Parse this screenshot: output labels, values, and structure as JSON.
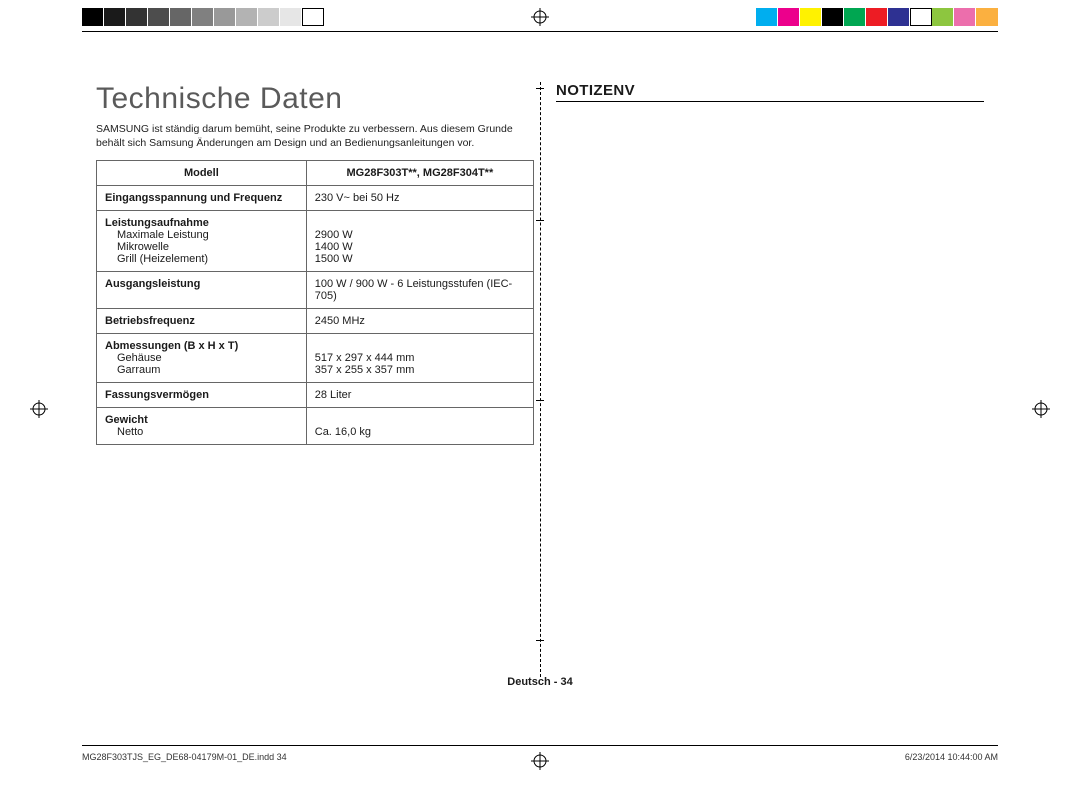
{
  "print_marks": {
    "gray_swatches": [
      "#000000",
      "#1a1a1a",
      "#333333",
      "#4d4d4d",
      "#666666",
      "#808080",
      "#999999",
      "#b3b3b3",
      "#cccccc",
      "#e6e6e6",
      "#ffffff"
    ],
    "color_swatches": [
      "#00aeef",
      "#ec008c",
      "#fff200",
      "#000000",
      "#00a651",
      "#ed1c24",
      "#2e3192",
      "#ffffff",
      "#8dc63f",
      "#ec6eac",
      "#fbb040"
    ]
  },
  "left": {
    "title": "Technische Daten",
    "subtitle": "SAMSUNG ist ständig darum bemüht, seine Produkte zu verbessern. Aus diesem Grunde behält sich Samsung Änderungen am Design und an Bedienungsanleitungen vor.",
    "table": {
      "header_left": "Modell",
      "header_right": "MG28F303T**, MG28F304T**",
      "rows": [
        {
          "label": "Eingangsspannung und Frequenz",
          "sub": [],
          "values": [
            "230 V~ bei 50 Hz"
          ]
        },
        {
          "label": "Leistungsaufnahme",
          "sub": [
            "Maximale Leistung",
            "Mikrowelle",
            "Grill (Heizelement)"
          ],
          "values": [
            "",
            "2900 W",
            "1400 W",
            "1500 W"
          ]
        },
        {
          "label": "Ausgangsleistung",
          "sub": [],
          "values": [
            "100 W / 900 W - 6 Leistungsstufen (IEC-705)"
          ]
        },
        {
          "label": "Betriebsfrequenz",
          "sub": [],
          "values": [
            "2450 MHz"
          ]
        },
        {
          "label": "Abmessungen (B x H x T)",
          "sub": [
            "Gehäuse",
            "Garraum"
          ],
          "values": [
            "",
            "517 x 297 x 444 mm",
            "357 x 255 x 357 mm"
          ]
        },
        {
          "label": "Fassungsvermögen",
          "sub": [],
          "values": [
            "28 Liter"
          ]
        },
        {
          "label": "Gewicht",
          "sub": [
            "Netto"
          ],
          "values": [
            "",
            "Ca. 16,0 kg"
          ]
        }
      ]
    }
  },
  "right": {
    "title": "NOTIZENV"
  },
  "footer": {
    "center": "Deutsch - 34",
    "left": "MG28F303TJS_EG_DE68-04179M-01_DE.indd   34",
    "right": "6/23/2014   10:44:00 AM"
  },
  "divider_ticks_top": [
    88,
    220,
    400,
    640
  ]
}
